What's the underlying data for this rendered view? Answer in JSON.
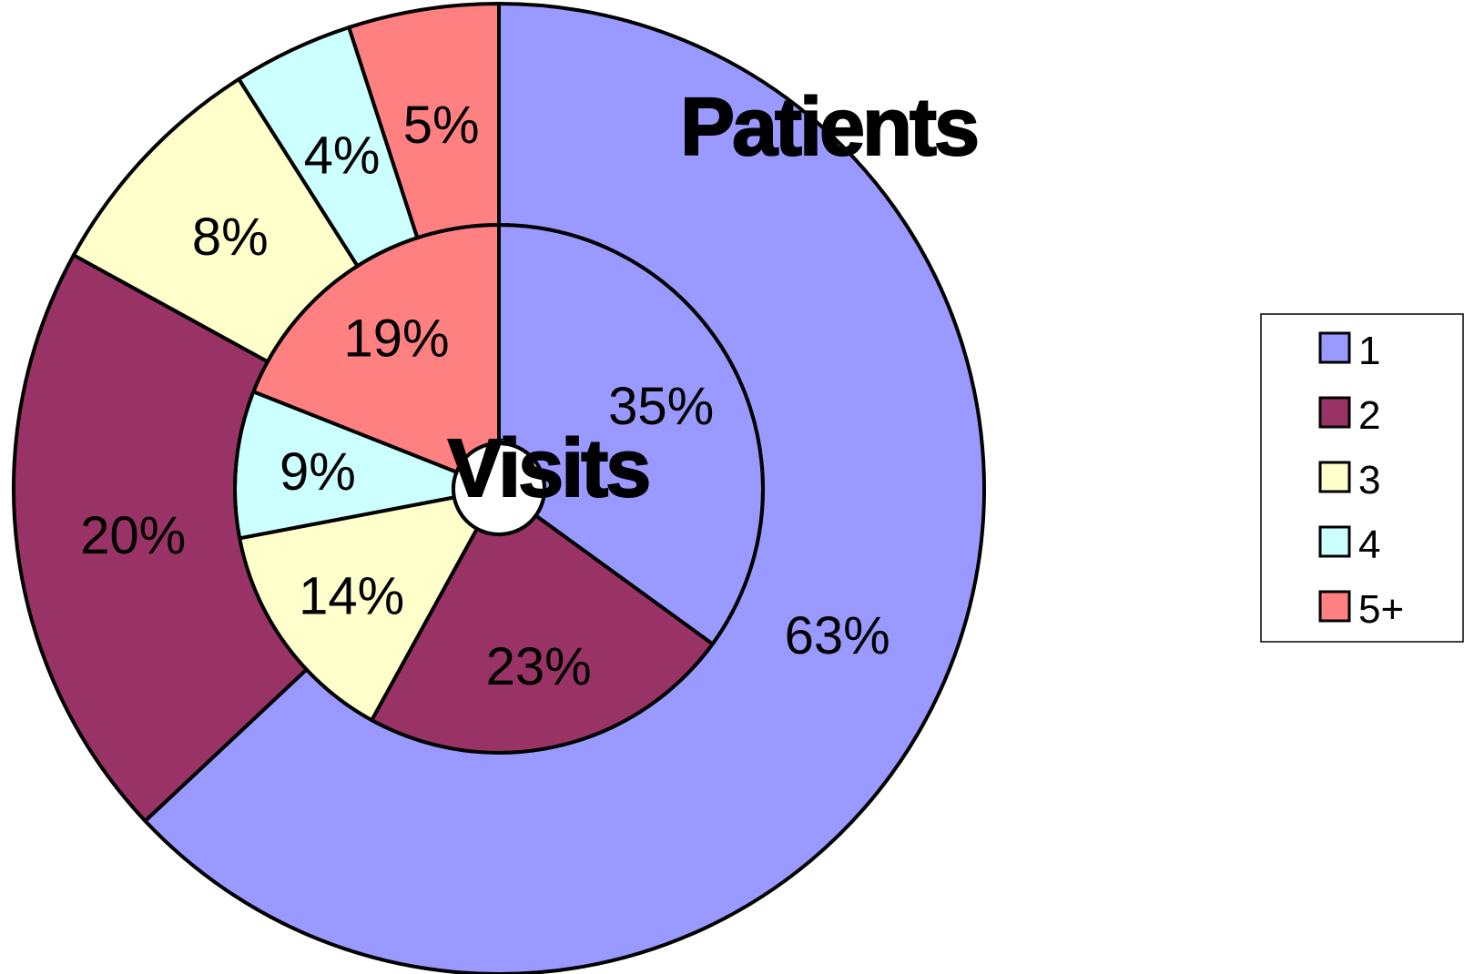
{
  "chart_data": {
    "type": "pie",
    "subtype": "doughnut",
    "categories": [
      "1",
      "2",
      "3",
      "4",
      "5+"
    ],
    "colors": [
      "#9999FF",
      "#993366",
      "#FFFFCC",
      "#CCFFFF",
      "#FF8080"
    ],
    "series": [
      {
        "name": "Visits",
        "ring": "inner",
        "values": [
          35,
          23,
          14,
          9,
          19
        ],
        "labels": [
          "35%",
          "23%",
          "14%",
          "9%",
          "19%"
        ]
      },
      {
        "name": "Patients",
        "ring": "outer",
        "values": [
          63,
          20,
          8,
          4,
          5
        ],
        "labels": [
          "63%",
          "20%",
          "8%",
          "4%",
          "5%"
        ]
      }
    ],
    "legend": {
      "position": "right",
      "entries": [
        "1",
        "2",
        "3",
        "4",
        "5+"
      ]
    }
  }
}
